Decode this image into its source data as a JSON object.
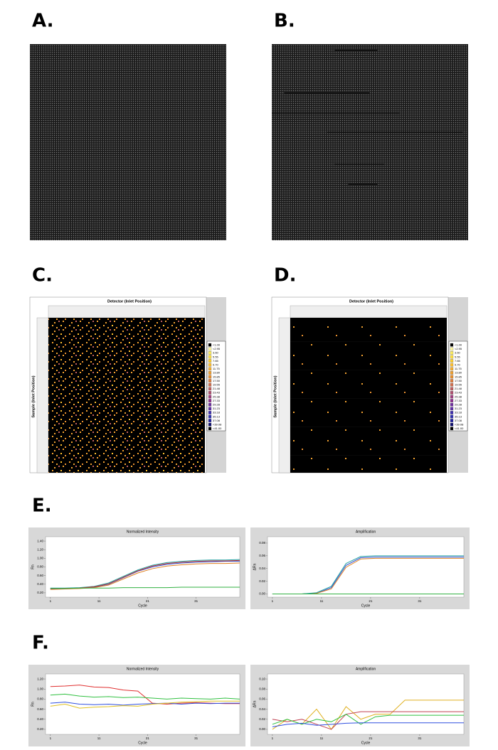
{
  "panels": [
    {
      "label": "A."
    },
    {
      "label": "B."
    },
    {
      "label": "C."
    },
    {
      "label": "D."
    },
    {
      "label": "E."
    },
    {
      "label": "F."
    }
  ],
  "heatmaps": [
    {
      "x_title": "Detector (Inlet Position)",
      "y_title": "Sample (Inlet Position)"
    },
    {
      "x_title": "Detector (Inlet Position)",
      "y_title": "Sample (Inlet Position)"
    }
  ],
  "heat_legend": [
    {
      "label": "<1.00",
      "color": "#000000"
    },
    {
      "label": "<2.95",
      "color": "#fff8a0"
    },
    {
      "label": "3.60",
      "color": "#ffee60"
    },
    {
      "label": "5.55",
      "color": "#ffe040"
    },
    {
      "label": "7.65",
      "color": "#ffd030"
    },
    {
      "label": "9.70",
      "color": "#ffc030"
    },
    {
      "label": "11.75",
      "color": "#f8b030"
    },
    {
      "label": "13.80",
      "color": "#f0a030"
    },
    {
      "label": "15.85",
      "color": "#e89030"
    },
    {
      "label": "17.50",
      "color": "#e08040"
    },
    {
      "label": "19.55",
      "color": "#d07050"
    },
    {
      "label": "21.48",
      "color": "#c06060"
    },
    {
      "label": "23.43",
      "color": "#b05070"
    },
    {
      "label": "25.38",
      "color": "#a04080"
    },
    {
      "label": "27.33",
      "color": "#903090"
    },
    {
      "label": "29.28",
      "color": "#7030a0"
    },
    {
      "label": "31.23",
      "color": "#6030a8"
    },
    {
      "label": "33.18",
      "color": "#4030b0"
    },
    {
      "label": "35.13",
      "color": "#3030b0"
    },
    {
      "label": "37.08",
      "color": "#2020a0"
    },
    {
      "label": "<39.08",
      "color": "#101070"
    },
    {
      "label": "<41.00",
      "color": "#000000"
    }
  ],
  "chart_data": [
    {
      "type": "line",
      "title": "Normalized Intensity",
      "ylabel": "Rn",
      "xlabel": "Cycle",
      "x": [
        1,
        4,
        7,
        10,
        13,
        16,
        19,
        22,
        25,
        28,
        31,
        34,
        37,
        40
      ],
      "xlim": [
        0,
        40
      ],
      "xticks": [
        1,
        11,
        21,
        31
      ],
      "ylim": [
        0.1,
        1.5
      ],
      "yticks": [
        {
          "value": 0.2,
          "label": "0.20"
        },
        {
          "value": 0.4,
          "label": "0.40"
        },
        {
          "value": 0.6,
          "label": "0.60"
        },
        {
          "value": 0.8,
          "label": "0.80"
        },
        {
          "value": 1.0,
          "label": "1.00"
        },
        {
          "value": 1.2,
          "label": "1.20"
        },
        {
          "value": 1.4,
          "label": "1.40"
        }
      ],
      "series": [
        {
          "color": "#3050d0",
          "values": [
            0.3,
            0.3,
            0.31,
            0.33,
            0.4,
            0.55,
            0.7,
            0.8,
            0.86,
            0.89,
            0.91,
            0.92,
            0.93,
            0.93
          ]
        },
        {
          "color": "#e08020",
          "values": [
            0.28,
            0.29,
            0.3,
            0.32,
            0.38,
            0.52,
            0.66,
            0.76,
            0.82,
            0.85,
            0.87,
            0.88,
            0.88,
            0.89
          ]
        },
        {
          "color": "#20a0a0",
          "values": [
            0.31,
            0.31,
            0.32,
            0.35,
            0.43,
            0.58,
            0.73,
            0.84,
            0.9,
            0.93,
            0.95,
            0.96,
            0.96,
            0.97
          ]
        },
        {
          "color": "#c03030",
          "values": [
            0.29,
            0.3,
            0.31,
            0.34,
            0.41,
            0.56,
            0.71,
            0.82,
            0.88,
            0.91,
            0.93,
            0.94,
            0.94,
            0.95
          ]
        },
        {
          "color": "#30b040",
          "values": [
            0.3,
            0.3,
            0.31,
            0.31,
            0.31,
            0.32,
            0.32,
            0.32,
            0.32,
            0.33,
            0.33,
            0.33,
            0.33,
            0.33
          ]
        }
      ]
    },
    {
      "type": "line",
      "title": "Amplification",
      "ylabel": "ΔRn",
      "xlabel": "Cycle",
      "x": [
        1,
        4,
        7,
        10,
        13,
        16,
        19,
        22,
        25,
        28,
        31,
        34,
        37,
        40
      ],
      "xlim": [
        0,
        40
      ],
      "xticks": [
        1,
        11,
        21,
        31
      ],
      "ylim": [
        -0.005,
        0.09
      ],
      "yticks": [
        {
          "value": 0,
          "label": "0.00"
        },
        {
          "value": 0.02,
          "label": "0.02"
        },
        {
          "value": 0.04,
          "label": "0.04"
        },
        {
          "value": 0.06,
          "label": "0.06"
        },
        {
          "value": 0.08,
          "label": "0.08"
        }
      ],
      "series": [
        {
          "color": "#3050d0",
          "values": [
            0,
            0,
            0,
            0.001,
            0.01,
            0.045,
            0.057,
            0.058,
            0.058,
            0.058,
            0.058,
            0.058,
            0.058,
            0.058
          ]
        },
        {
          "color": "#e08020",
          "values": [
            0,
            0,
            0,
            0.001,
            0.008,
            0.042,
            0.055,
            0.056,
            0.056,
            0.056,
            0.056,
            0.056,
            0.056,
            0.056
          ]
        },
        {
          "color": "#20a0a0",
          "values": [
            0,
            0,
            0,
            0.002,
            0.012,
            0.048,
            0.059,
            0.06,
            0.06,
            0.06,
            0.06,
            0.06,
            0.06,
            0.06
          ]
        },
        {
          "color": "#30b040",
          "values": [
            0,
            0,
            0,
            0,
            0,
            0,
            0,
            0,
            0,
            0,
            0,
            0,
            0,
            0
          ]
        }
      ]
    },
    {
      "type": "line",
      "title": "Normalized Intensity",
      "ylabel": "Rn",
      "xlabel": "Cycle",
      "x": [
        1,
        4,
        7,
        10,
        13,
        16,
        19,
        22,
        25,
        28,
        31,
        34,
        37,
        40
      ],
      "xlim": [
        0,
        40
      ],
      "xticks": [
        1,
        11,
        21,
        31
      ],
      "ylim": [
        0.1,
        1.3
      ],
      "yticks": [
        {
          "value": 0.2,
          "label": "0.20"
        },
        {
          "value": 0.4,
          "label": "0.40"
        },
        {
          "value": 0.6,
          "label": "0.60"
        },
        {
          "value": 0.8,
          "label": "0.80"
        },
        {
          "value": 1.0,
          "label": "1.00"
        },
        {
          "value": 1.2,
          "label": "1.20"
        }
      ],
      "series": [
        {
          "color": "#e03030",
          "values": [
            1.05,
            1.06,
            1.08,
            1.04,
            1.03,
            0.98,
            0.96,
            0.72,
            0.7,
            0.72,
            0.73,
            0.72,
            0.71,
            0.71
          ]
        },
        {
          "color": "#30c040",
          "values": [
            0.88,
            0.9,
            0.86,
            0.84,
            0.85,
            0.83,
            0.84,
            0.82,
            0.8,
            0.82,
            0.81,
            0.8,
            0.82,
            0.8
          ]
        },
        {
          "color": "#3050e0",
          "values": [
            0.72,
            0.74,
            0.7,
            0.69,
            0.7,
            0.68,
            0.7,
            0.71,
            0.72,
            0.7,
            0.72,
            0.71,
            0.72,
            0.72
          ]
        },
        {
          "color": "#e0c020",
          "values": [
            0.66,
            0.7,
            0.62,
            0.64,
            0.65,
            0.67,
            0.66,
            0.7,
            0.72,
            0.74,
            0.75,
            0.76,
            0.76,
            0.76
          ]
        }
      ]
    },
    {
      "type": "line",
      "title": "Amplification",
      "ylabel": "ΔRn",
      "xlabel": "Cycle",
      "x": [
        1,
        4,
        7,
        10,
        13,
        16,
        19,
        22,
        25,
        28,
        31,
        34,
        37,
        40
      ],
      "xlim": [
        0,
        40
      ],
      "xticks": [
        1,
        11,
        21,
        31
      ],
      "ylim": [
        -0.01,
        0.11
      ],
      "yticks": [
        {
          "value": 0,
          "label": "0.00"
        },
        {
          "value": 0.02,
          "label": "0.02"
        },
        {
          "value": 0.04,
          "label": "0.04"
        },
        {
          "value": 0.06,
          "label": "0.06"
        },
        {
          "value": 0.08,
          "label": "0.08"
        },
        {
          "value": 0.1,
          "label": "0.10"
        }
      ],
      "series": [
        {
          "color": "#e0b020",
          "values": [
            0,
            0.02,
            0.01,
            0.04,
            0,
            0.045,
            0.02,
            0.03,
            0.03,
            0.058,
            0.058,
            0.058,
            0.058,
            0.058
          ]
        },
        {
          "color": "#c04050",
          "values": [
            0.02,
            0.015,
            0.02,
            0.01,
            0,
            0.03,
            0.035,
            0.035,
            0.035,
            0.035,
            0.035,
            0.035,
            0.035,
            0.035
          ]
        },
        {
          "color": "#30c040",
          "values": [
            0.01,
            0.02,
            0.01,
            0.02,
            0.015,
            0.03,
            0.01,
            0.025,
            0.028,
            0.028,
            0.028,
            0.028,
            0.028,
            0.028
          ]
        },
        {
          "color": "#3050e0",
          "values": [
            0.005,
            0.01,
            0.012,
            0.008,
            0.01,
            0.012,
            0.013,
            0.013,
            0.013,
            0.013,
            0.013,
            0.013,
            0.013,
            0.013
          ]
        }
      ]
    }
  ]
}
